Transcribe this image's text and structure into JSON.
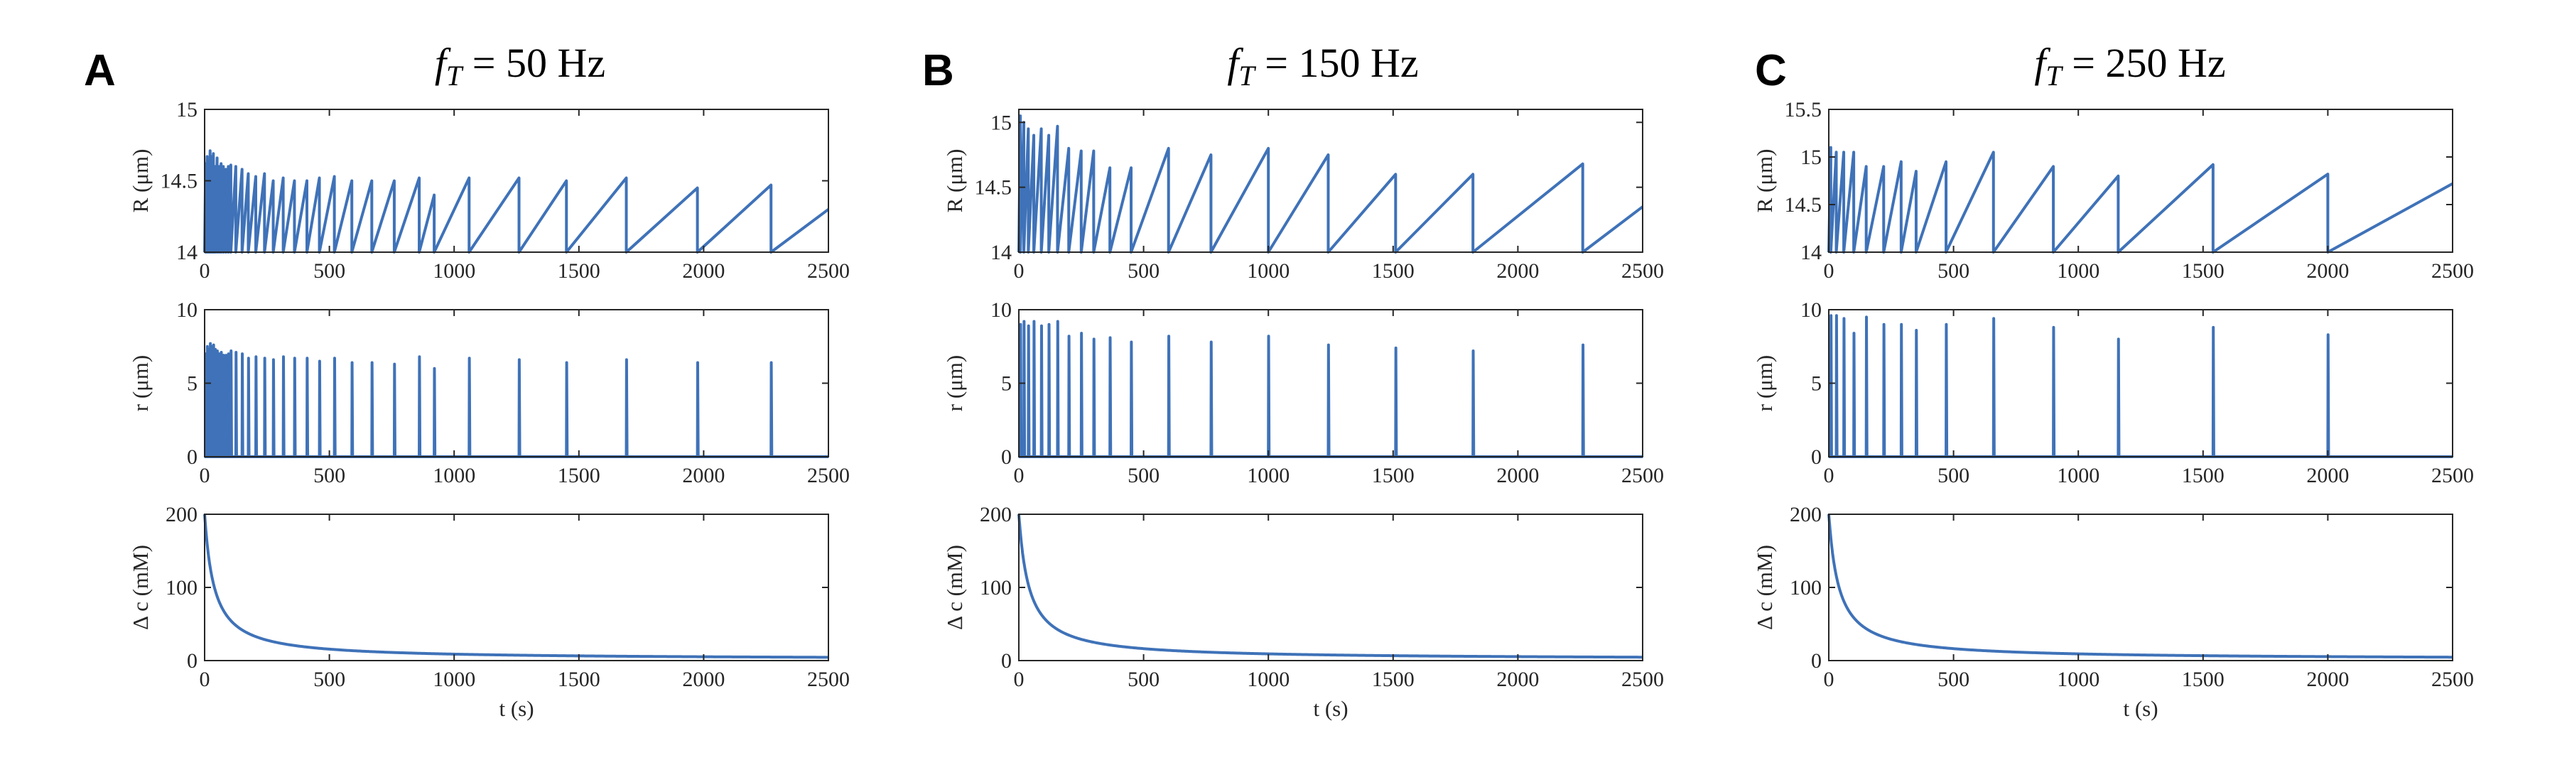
{
  "figure": {
    "columns": [
      {
        "letter": "A",
        "title_var": "f",
        "title_sub": "T",
        "title_value": " = 50 Hz"
      },
      {
        "letter": "B",
        "title_var": "f",
        "title_sub": "T",
        "title_value": " = 150 Hz"
      },
      {
        "letter": "C",
        "title_var": "f",
        "title_sub": "T",
        "title_value": " = 250 Hz"
      }
    ]
  },
  "chart_data": [
    {
      "type": "line",
      "panel": "A",
      "row": "R",
      "ylabel": "R (μm)",
      "xlabel": "",
      "xlim": [
        0,
        2500
      ],
      "ylim": [
        14,
        15
      ],
      "yticks": [
        "14",
        "14.5",
        "15"
      ],
      "xticks": [
        "0",
        "500",
        "1000",
        "1500",
        "2000",
        "2500"
      ],
      "peaks": {
        "t": [
          4,
          10,
          16,
          22,
          28,
          35,
          42,
          50,
          58,
          66,
          75,
          85,
          95,
          105,
          125,
          150,
          175,
          205,
          240,
          275,
          315,
          360,
          410,
          460,
          520,
          590,
          670,
          760,
          860,
          920,
          1060,
          1260,
          1450,
          1690,
          1975,
          2270
        ],
        "v": [
          14.62,
          14.67,
          14.63,
          14.71,
          14.67,
          14.69,
          14.6,
          14.66,
          14.6,
          14.62,
          14.6,
          14.58,
          14.6,
          14.61,
          14.6,
          14.58,
          14.55,
          14.53,
          14.55,
          14.5,
          14.52,
          14.5,
          14.5,
          14.52,
          14.53,
          14.5,
          14.5,
          14.5,
          14.52,
          14.4,
          14.52,
          14.52,
          14.5,
          14.52,
          14.45,
          14.47
        ]
      },
      "series": [
        {
          "values_end": 14.3
        }
      ]
    },
    {
      "type": "line",
      "panel": "A",
      "row": "r",
      "ylabel": "r (μm)",
      "xlabel": "",
      "xlim": [
        0,
        2500
      ],
      "ylim": [
        0,
        10
      ],
      "yticks": [
        "0",
        "5",
        "10"
      ],
      "xticks": [
        "0",
        "500",
        "1000",
        "1500",
        "2000",
        "2500"
      ],
      "spikes": {
        "t": [
          4,
          10,
          16,
          22,
          28,
          35,
          42,
          50,
          58,
          66,
          75,
          85,
          95,
          105,
          125,
          150,
          175,
          205,
          240,
          275,
          315,
          360,
          410,
          460,
          520,
          590,
          670,
          760,
          860,
          920,
          1060,
          1260,
          1450,
          1690,
          1975,
          2270
        ],
        "v": [
          7,
          7.5,
          7.3,
          7.7,
          7.5,
          7.6,
          7.3,
          7.2,
          7.0,
          7.1,
          6.9,
          6.9,
          7.0,
          7.2,
          7.1,
          7.0,
          6.7,
          6.8,
          6.7,
          6.6,
          6.8,
          6.7,
          6.7,
          6.5,
          6.7,
          6.4,
          6.4,
          6.3,
          6.8,
          6.0,
          6.7,
          6.6,
          6.4,
          6.6,
          6.4,
          6.4
        ]
      }
    },
    {
      "type": "line",
      "panel": "A",
      "row": "dc",
      "ylabel": "Δ c (mM)",
      "xlabel": "t (s)",
      "xlim": [
        0,
        2500
      ],
      "ylim": [
        0,
        200
      ],
      "yticks": [
        "0",
        "100",
        "200"
      ],
      "xticks": [
        "0",
        "500",
        "1000",
        "1500",
        "2000",
        "2500"
      ],
      "decay": {
        "c0": 200,
        "k": 38
      }
    },
    {
      "type": "line",
      "panel": "B",
      "row": "R",
      "ylabel": "R (μm)",
      "xlabel": "",
      "xlim": [
        0,
        2500
      ],
      "ylim": [
        14,
        15.1
      ],
      "yticks": [
        "14",
        "14.5",
        "15"
      ],
      "xticks": [
        "0",
        "500",
        "1000",
        "1500",
        "2000",
        "2500"
      ],
      "peaks": {
        "t": [
          6,
          20,
          38,
          60,
          90,
          120,
          155,
          200,
          250,
          300,
          365,
          450,
          600,
          770,
          1000,
          1240,
          1510,
          1820,
          2260
        ],
        "v": [
          15.05,
          15.0,
          14.95,
          14.9,
          14.95,
          14.9,
          14.97,
          14.8,
          14.78,
          14.78,
          14.65,
          14.65,
          14.8,
          14.75,
          14.8,
          14.75,
          14.6,
          14.6,
          14.68
        ]
      },
      "series": [
        {
          "values_end": 14.35
        }
      ]
    },
    {
      "type": "line",
      "panel": "B",
      "row": "r",
      "ylabel": "r (μm)",
      "xlabel": "",
      "xlim": [
        0,
        2500
      ],
      "ylim": [
        0,
        10
      ],
      "yticks": [
        "0",
        "5",
        "10"
      ],
      "xticks": [
        "0",
        "500",
        "1000",
        "1500",
        "2000",
        "2500"
      ],
      "spikes": {
        "t": [
          6,
          20,
          38,
          60,
          90,
          120,
          155,
          200,
          250,
          300,
          365,
          450,
          600,
          770,
          1000,
          1240,
          1510,
          1820,
          2260
        ],
        "v": [
          9.0,
          9.2,
          8.9,
          9.2,
          8.9,
          9.0,
          9.2,
          8.2,
          8.4,
          8.0,
          8.1,
          7.8,
          8.2,
          7.8,
          8.2,
          7.6,
          7.4,
          7.2,
          7.6
        ]
      }
    },
    {
      "type": "line",
      "panel": "B",
      "row": "dc",
      "ylabel": "Δ c (mM)",
      "xlabel": "t (s)",
      "xlim": [
        0,
        2500
      ],
      "ylim": [
        0,
        200
      ],
      "yticks": [
        "0",
        "100",
        "200"
      ],
      "xticks": [
        "0",
        "500",
        "1000",
        "1500",
        "2000",
        "2500"
      ],
      "decay": {
        "c0": 200,
        "k": 40
      }
    },
    {
      "type": "line",
      "panel": "C",
      "row": "R",
      "ylabel": "R (μm)",
      "xlabel": "",
      "xlim": [
        0,
        2500
      ],
      "ylim": [
        14,
        15.5
      ],
      "yticks": [
        "14",
        "14.5",
        "15",
        "15.5"
      ],
      "xticks": [
        "0",
        "500",
        "1000",
        "1500",
        "2000",
        "2500"
      ],
      "peaks": {
        "t": [
          8,
          30,
          60,
          100,
          150,
          220,
          290,
          350,
          470,
          660,
          900,
          1160,
          1540,
          2000
        ],
        "v": [
          15.1,
          15.05,
          15.05,
          15.05,
          14.9,
          14.9,
          14.95,
          14.85,
          14.95,
          15.05,
          14.9,
          14.8,
          14.92,
          14.82
        ]
      },
      "series": [
        {
          "values_end": 14.72
        }
      ]
    },
    {
      "type": "line",
      "panel": "C",
      "row": "r",
      "ylabel": "r (μm)",
      "xlabel": "",
      "xlim": [
        0,
        2500
      ],
      "ylim": [
        0,
        10
      ],
      "yticks": [
        "0",
        "5",
        "10"
      ],
      "xticks": [
        "0",
        "500",
        "1000",
        "1500",
        "2000",
        "2500"
      ],
      "spikes": {
        "t": [
          8,
          30,
          60,
          100,
          150,
          220,
          290,
          350,
          470,
          660,
          900,
          1160,
          1540,
          2000
        ],
        "v": [
          9.6,
          9.6,
          9.4,
          8.4,
          9.5,
          9.0,
          9.0,
          8.6,
          9.0,
          9.4,
          8.8,
          8.0,
          8.8,
          8.3
        ]
      }
    },
    {
      "type": "line",
      "panel": "C",
      "row": "dc",
      "ylabel": "Δ c (mM)",
      "xlabel": "t (s)",
      "xlim": [
        0,
        2500
      ],
      "ylim": [
        0,
        200
      ],
      "yticks": [
        "0",
        "100",
        "200"
      ],
      "xticks": [
        "0",
        "500",
        "1000",
        "1500",
        "2000",
        "2500"
      ],
      "decay": {
        "c0": 200,
        "k": 40
      }
    }
  ]
}
